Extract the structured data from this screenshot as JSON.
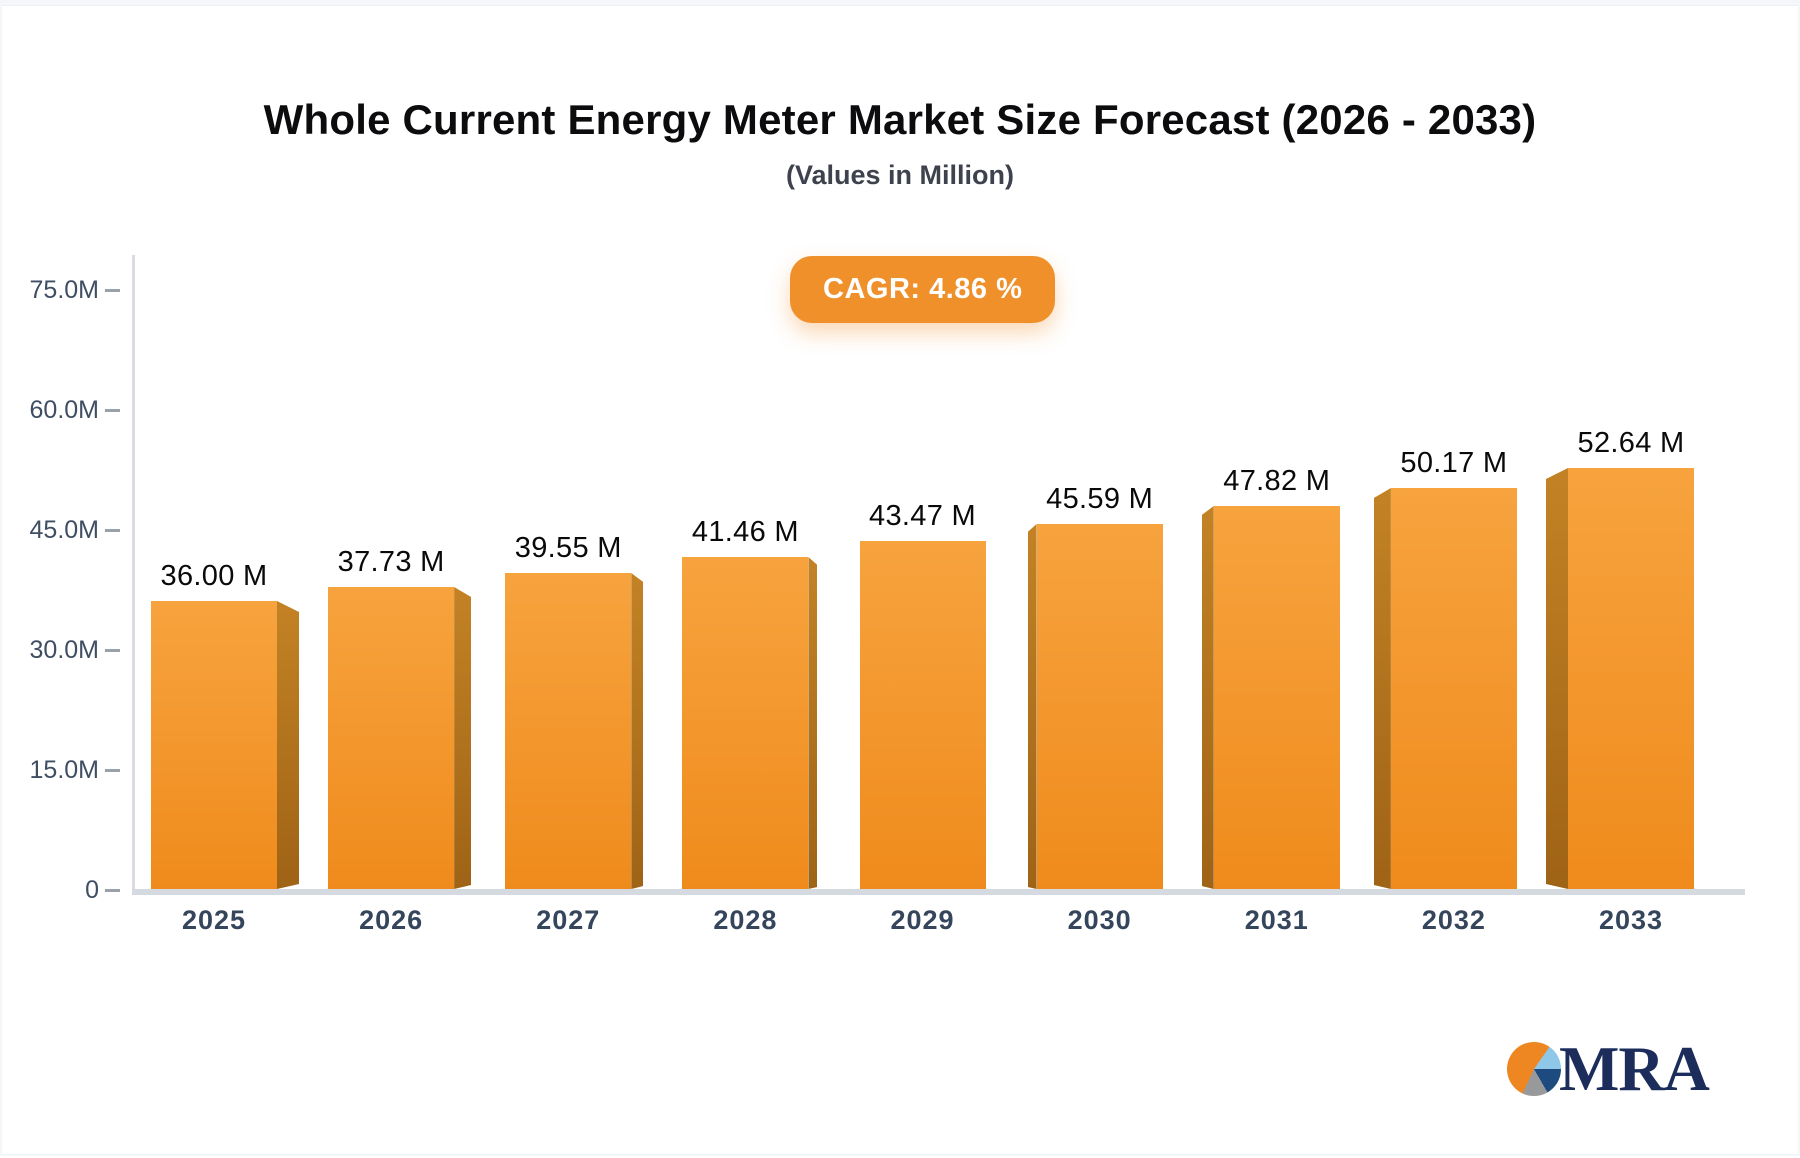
{
  "page": {
    "title": "Whole Current Energy Meter Market Size Forecast (2026 - 2033)",
    "subtitle": "(Values in Million)",
    "cagr_badge": "CAGR: 4.86 %",
    "brand": "MRA"
  },
  "colors": {
    "title": "#0C0C0E",
    "subtitle": "#3D424D",
    "badge_bg": "#F0902B",
    "badge_text": "#FFFFFF",
    "bar_top": "#F7A33E",
    "bar_bottom": "#EF8B1C",
    "bar_side_top": "#C38224",
    "bar_side_bottom": "#9F6316",
    "axis_line": "#D9DDE3",
    "baseline": "#D5DAE0",
    "tick": "#99A2AC",
    "y_label": "#3F4E63",
    "x_label": "#34455C",
    "value_label": "#0A0A0B",
    "logo_navy": "#1C2D5C",
    "logo_orange": "#EE8722",
    "logo_blue": "#8EC7E8",
    "logo_darkblue": "#1D4A7F",
    "logo_gray": "#98999B"
  },
  "chart_data": {
    "type": "bar",
    "title": "Whole Current Energy Meter Market Size Forecast (2026 - 2033)",
    "subtitle": "(Values in Million)",
    "cagr_pct": 4.86,
    "unit": "Million",
    "categories": [
      "2025",
      "2026",
      "2027",
      "2028",
      "2029",
      "2030",
      "2031",
      "2032",
      "2033"
    ],
    "values": [
      36.0,
      37.73,
      39.55,
      41.46,
      43.47,
      45.59,
      47.82,
      50.17,
      52.64
    ],
    "bar_labels": [
      "36.00 M",
      "37.73 M",
      "39.55 M",
      "41.46 M",
      "43.47 M",
      "45.59 M",
      "47.82 M",
      "50.17 M",
      "52.64 M"
    ],
    "ylim": [
      0,
      75
    ],
    "y_ticks": [
      {
        "value": 0,
        "label": "0"
      },
      {
        "value": 15,
        "label": "15.0M"
      },
      {
        "value": 30,
        "label": "30.0M"
      },
      {
        "value": 45,
        "label": "45.0M"
      },
      {
        "value": 60,
        "label": "60.0M"
      },
      {
        "value": 75,
        "label": "75.0M"
      }
    ],
    "grid": false,
    "legend": false,
    "style": "3d-bars-perspective-toward-center"
  }
}
